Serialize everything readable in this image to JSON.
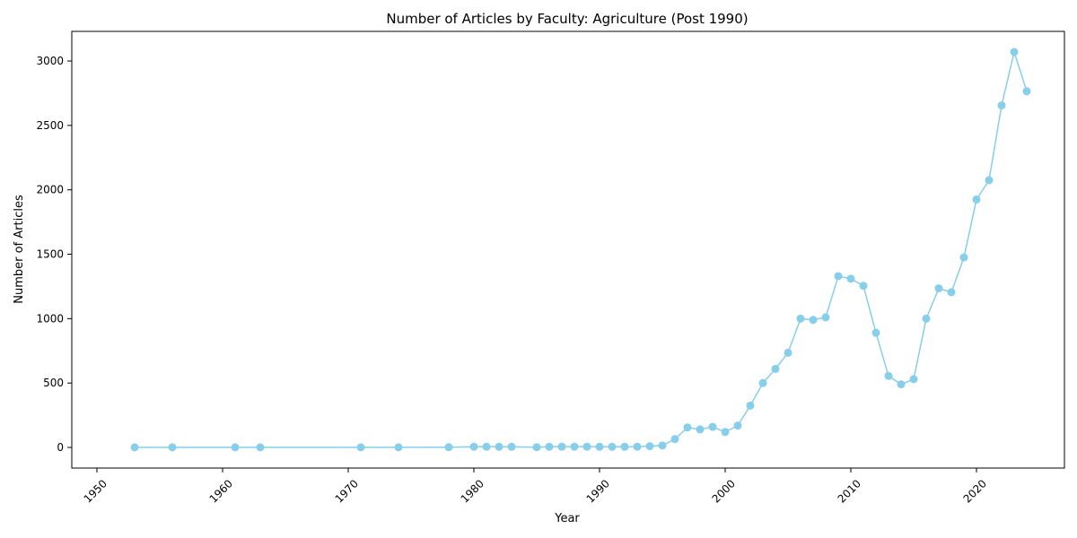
{
  "chart_data": {
    "type": "line",
    "title": "Number of Articles by Faculty: Agriculture (Post 1990)",
    "xlabel": "Year",
    "ylabel": "Number of Articles",
    "xlim": [
      1948,
      2027
    ],
    "ylim": [
      -160,
      3230
    ],
    "xticks": [
      1950,
      1960,
      1970,
      1980,
      1990,
      2000,
      2010,
      2020
    ],
    "yticks": [
      0,
      500,
      1000,
      1500,
      2000,
      2500,
      3000
    ],
    "grid": false,
    "line_color": "#87ceeb",
    "marker": "circle",
    "series": [
      {
        "x": [
          1953,
          1956,
          1961,
          1963,
          1971,
          1974,
          1978,
          1980,
          1981,
          1982,
          1983,
          1985,
          1986,
          1987,
          1988,
          1989,
          1990,
          1991,
          1992,
          1993,
          1994,
          1995,
          1996,
          1997,
          1998,
          1999,
          2000,
          2001,
          2002,
          2003,
          2004,
          2005,
          2006,
          2007,
          2008,
          2009,
          2010,
          2011,
          2012,
          2013,
          2014,
          2015,
          2016,
          2017,
          2018,
          2019,
          2020,
          2021,
          2022,
          2023,
          2024
        ],
        "y": [
          1,
          1,
          1,
          1,
          1,
          1,
          2,
          5,
          6,
          5,
          5,
          2,
          5,
          6,
          6,
          6,
          5,
          5,
          5,
          6,
          10,
          15,
          65,
          155,
          140,
          160,
          120,
          170,
          325,
          500,
          610,
          735,
          1000,
          990,
          1010,
          1330,
          1310,
          1255,
          890,
          555,
          490,
          530,
          1000,
          1235,
          1205,
          1475,
          1925,
          2075,
          2655,
          3070,
          2765
        ]
      }
    ]
  }
}
